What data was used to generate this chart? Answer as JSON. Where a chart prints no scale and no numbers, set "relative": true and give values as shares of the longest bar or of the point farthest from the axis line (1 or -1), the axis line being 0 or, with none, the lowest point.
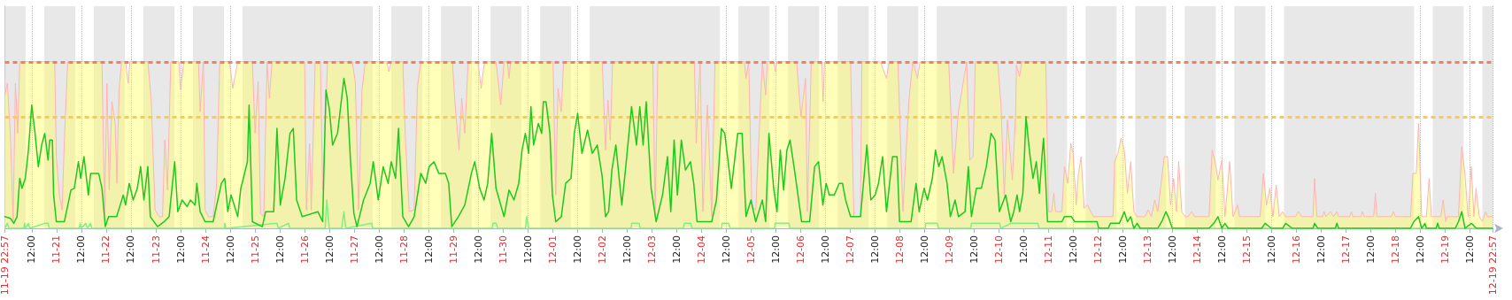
{
  "chart_data": {
    "type": "line",
    "relative": true,
    "grid": "x",
    "line_style": "solid",
    "marker": "none",
    "xlim": [
      "--11-19T22:57",
      "--12-19T22:57"
    ],
    "xticks": [
      {
        "value": "--11-19T22:57",
        "label": "11-19 22:57"
      },
      {
        "value": "--11-20T12:00",
        "label": "12:00"
      },
      {
        "value": "--11-21",
        "label": "11-21"
      },
      {
        "value": "--11-21T12:00",
        "label": "12:00"
      },
      {
        "value": "--11-22",
        "label": "11-22"
      },
      {
        "value": "--11-22T12:00",
        "label": "12:00"
      },
      {
        "value": "--11-23",
        "label": "11-23"
      },
      {
        "value": "--11-23T12:00",
        "label": "12:00"
      },
      {
        "value": "--11-24",
        "label": "11-24"
      },
      {
        "value": "--11-24T12:00",
        "label": "12:00"
      },
      {
        "value": "--11-25",
        "label": "11-25"
      },
      {
        "value": "--11-25T12:00",
        "label": "12:00"
      },
      {
        "value": "--11-26",
        "label": "11-26"
      },
      {
        "value": "--11-26T12:00",
        "label": "12:00"
      },
      {
        "value": "--11-27",
        "label": "11-27"
      },
      {
        "value": "--11-27T12:00",
        "label": "12:00"
      },
      {
        "value": "--11-28",
        "label": "11-28"
      },
      {
        "value": "--11-28T12:00",
        "label": "12:00"
      },
      {
        "value": "--11-29",
        "label": "11-29"
      },
      {
        "value": "--11-29T12:00",
        "label": "12:00"
      },
      {
        "value": "--11-30",
        "label": "11-30"
      },
      {
        "value": "--11-30T12:00",
        "label": "12:00"
      },
      {
        "value": "--12-01",
        "label": "12-01"
      },
      {
        "value": "--12-01T12:00",
        "label": "12:00"
      },
      {
        "value": "--12-02",
        "label": "12-02"
      },
      {
        "value": "--12-02T12:00",
        "label": "12:00"
      },
      {
        "value": "--12-03",
        "label": "12-03"
      },
      {
        "value": "--12-03T12:00",
        "label": "12:00"
      },
      {
        "value": "--12-04",
        "label": "12-04"
      },
      {
        "value": "--12-04T12:00",
        "label": "12:00"
      },
      {
        "value": "--12-05",
        "label": "12-05"
      },
      {
        "value": "--12-05T12:00",
        "label": "12:00"
      },
      {
        "value": "--12-06",
        "label": "12-06"
      },
      {
        "value": "--12-06T12:00",
        "label": "12:00"
      },
      {
        "value": "--12-07",
        "label": "12-07"
      },
      {
        "value": "--12-07T12:00",
        "label": "12:00"
      },
      {
        "value": "--12-08",
        "label": "12-08"
      },
      {
        "value": "--12-08T12:00",
        "label": "12:00"
      },
      {
        "value": "--12-09",
        "label": "12-09"
      },
      {
        "value": "--12-09T12:00",
        "label": "12:00"
      },
      {
        "value": "--12-10",
        "label": "12-10"
      },
      {
        "value": "--12-10T12:00",
        "label": "12:00"
      },
      {
        "value": "--12-11",
        "label": "12-11"
      },
      {
        "value": "--12-11T12:00",
        "label": "12:00"
      },
      {
        "value": "--12-12",
        "label": "12-12"
      },
      {
        "value": "--12-12T12:00",
        "label": "12:00"
      },
      {
        "value": "--12-13",
        "label": "12-13"
      },
      {
        "value": "--12-13T12:00",
        "label": "12:00"
      },
      {
        "value": "--12-14",
        "label": "12-14"
      },
      {
        "value": "--12-14T12:00",
        "label": "12:00"
      },
      {
        "value": "--12-15",
        "label": "12-15"
      },
      {
        "value": "--12-15T12:00",
        "label": "12:00"
      },
      {
        "value": "--12-16",
        "label": "12-16"
      },
      {
        "value": "--12-16T12:00",
        "label": "12:00"
      },
      {
        "value": "--12-17",
        "label": "12-17"
      },
      {
        "value": "--12-17T12:00",
        "label": "12:00"
      },
      {
        "value": "--12-18",
        "label": "12-18"
      },
      {
        "value": "--12-18T12:00",
        "label": "12:00"
      },
      {
        "value": "--12-19",
        "label": "12-19"
      },
      {
        "value": "--12-19T12:00",
        "label": "12:00"
      },
      {
        "value": "--12-19T22:57",
        "label": "12-19 22:57"
      }
    ],
    "series": [
      {
        "type": "area",
        "color": "#ffb3b3",
        "x": [
          "--11-19T22:57",
          "--11-20T00:09",
          "--11-20T01:39",
          "--11-20T02:57",
          "--11-20T04:03",
          "--11-20T05:09",
          "--11-20T06:09",
          "--11-20T23:03",
          "--11-20T23:51",
          "--11-21T01:27",
          "--11-21T02:39",
          "--11-21T03:45",
          "--11-21T05:21",
          "--11-21T21:57",
          "--11-21T23:15",
          "--11-22T00:21",
          "--11-22T01:27",
          "--11-22T02:45",
          "--11-22T04:21",
          "--11-22T05:09",
          "--11-22T06:15",
          "--11-22T07:27",
          "--11-22T09:21",
          "--11-22T10:39",
          "--11-22T11:27",
          "--11-22T20:09",
          "--11-22T21:45",
          "--11-22T23:39",
          "--11-23T01:39",
          "--11-23T03:15",
          "--11-23T04:21",
          "--11-23T05:39",
          "--11-23T07:15",
          "--11-23T11:09",
          "--11-23T11:57",
          "--11-23T13:33",
          "--11-23T20:39",
          "--11-23T21:27",
          "--11-23T23:03",
          "--11-23T23:51",
          "--11-24T01:27",
          "--11-24T03:45",
          "--11-24T05:21",
          "--11-24T06:57",
          "--11-24T11:39",
          "--11-24T13:15",
          "--11-24T15:39",
          "--11-24T22:45",
          "--11-25T00:03",
          "--11-25T01:33",
          "--11-25T02:39",
          "--11-25T04:15",
          "--11-25T05:51",
          "--11-25T06:57",
          "--11-25T08:15",
          "--11-26T00:03",
          "--11-26T00:51",
          "--11-26T02:27",
          "--11-26T03:15",
          "--11-26T05:09",
          "--11-26T07:39",
          "--11-26T08:45",
          "--11-26T11:09",
          "--11-26T23:03",
          "--11-27T00:33",
          "--11-27T02:09",
          "--11-27T03:45",
          "--11-27T05:21",
          "--11-27T15:39",
          "--11-27T16:51",
          "--11-27T17:57",
          "--11-27T23:33",
          "--11-28T00:45",
          "--11-28T02:39",
          "--11-28T05:03",
          "--11-28T06:39",
          "--11-28T08:15",
          "--11-28T23:33",
          "--11-29T00:51",
          "--11-29T02:45",
          "--11-29T04:03",
          "--11-29T05:33",
          "--11-29T07:09",
          "--11-29T11:57",
          "--11-29T13:27",
          "--11-29T15:03",
          "--11-29T20:39",
          "--11-29T22:57",
          "--11-30T00:33",
          "--11-30T02:09",
          "--11-30T02:57",
          "--11-30T03:45",
          "--12-01T00:15",
          "--12-01T01:33",
          "--12-01T02:39",
          "--12-01T04:15",
          "--12-01T05:21",
          "--12-02T00:03",
          "--12-02T01:39",
          "--12-02T02:51",
          "--12-02T03:57",
          "--12-02T05:03",
          "--12-03T00:33",
          "--12-03T01:39",
          "--12-03T02:57",
          "--12-03T20:39",
          "--12-03T21:33",
          "--12-03T23:27",
          "--12-04T00:45",
          "--12-04T02:57",
          "--12-04T05:03",
          "--12-04T06:39",
          "--12-04T20:51",
          "--12-04T21:39",
          "--12-04T22:57",
          "--12-05T00:27",
          "--12-05T02:21",
          "--12-05T05:33",
          "--12-05T07:09",
          "--12-05T07:57",
          "--12-05T11:03",
          "--12-05T11:51",
          "--12-05T12:39",
          "--12-05T22:09",
          "--12-06T00:15",
          "--12-06T02:27",
          "--12-06T03:21",
          "--12-06T05:15",
          "--12-06T10:21",
          "--12-06T10:57",
          "--12-06T11:39",
          "--12-07T00:15",
          "--12-07T01:51",
          "--12-07T05:03",
          "--12-07T05:45",
          "--12-07T14:27",
          "--12-07T15:15",
          "--12-07T17:39",
          "--12-07T18:57",
          "--12-07T23:09",
          "--12-08T01:33",
          "--12-08T03:27",
          "--12-08T04:27",
          "--12-08T06:21",
          "--12-08T08:39",
          "--12-08T09:51",
          "--12-08T23:45",
          "--12-09T02:03",
          "--12-09T04:27",
          "--12-09T06:51",
          "--12-09T08:27",
          "--12-09T09:57",
          "--12-09T11:33",
          "--12-09T12:39",
          "--12-09T23:27",
          "--12-10T01:03",
          "--12-10T02:39",
          "--12-10T04:09",
          "--12-10T06:33",
          "--12-10T08:09",
          "--12-10T08:33",
          "--12-10T10:03",
          "--12-10T11:09",
          "--12-10T22:45",
          "--12-11T00:03",
          "--12-11T01:33",
          "--12-11T02:39",
          "--12-11T03:27",
          "--12-11T06:33",
          "--12-11T07:45",
          "--12-11T09:21",
          "--12-11T10:51",
          "--12-11T11:57",
          "--12-11T13:27",
          "--12-11T14:33",
          "--12-11T15:51",
          "--12-11T17:21",
          "--12-11T18:57",
          "--12-11T20:27",
          "--12-11T21:57",
          "--12-12T07:15",
          "--12-12T08:03",
          "--12-12T09:39",
          "--12-12T11:09",
          "--12-12T12:45",
          "--12-12T14:15",
          "--12-12T15:51",
          "--12-12T17:21",
          "--12-12T18:57",
          "--12-12T22:45",
          "--12-13T00:21",
          "--12-13T01:51",
          "--12-13T03:27",
          "--12-13T04:57",
          "--12-13T06:33",
          "--12-13T08:03",
          "--12-13T09:39",
          "--12-13T11:09",
          "--12-13T12:39",
          "--12-13T13:57",
          "--12-13T15:03",
          "--12-13T16:33",
          "--12-13T18:09",
          "--12-13T19:39",
          "--12-13T21:15",
          "--12-13T22:45",
          "--12-14T05:45",
          "--12-14T07:15",
          "--12-14T08:51",
          "--12-14T10:03",
          "--12-14T11:57",
          "--12-14T13:27",
          "--12-14T15:45",
          "--12-14T17:21",
          "--12-14T19:39",
          "--12-14T20:27",
          "--12-15T06:27",
          "--12-15T08:03",
          "--12-15T09:33",
          "--12-15T11:09",
          "--12-15T12:39",
          "--12-15T14:15",
          "--12-15T15:45",
          "--12-15T17:21",
          "--12-15T18:51",
          "--12-15T23:33",
          "--12-16T01:03",
          "--12-16T02:39",
          "--12-16T08:03",
          "--12-16T08:51",
          "--12-16T09:57",
          "--12-16T12:39",
          "--12-16T13:27",
          "--12-16T14:15",
          "--12-16T16:33",
          "--12-16T18:03",
          "--12-16T19:39",
          "--12-16T20:27",
          "--12-17T01:51",
          "--12-17T02:39",
          "--12-17T03:21",
          "--12-17T07:15",
          "--12-17T08:03",
          "--12-17T08:51",
          "--12-17T13:27",
          "--12-17T14:15",
          "--12-17T14:57",
          "--12-17T21:57",
          "--12-17T23:03",
          "--12-17T23:57",
          "--12-18T07:15",
          "--12-18T08:27",
          "--12-18T10:03",
          "--12-18T11:09",
          "--12-18T12:39",
          "--12-18T14:57",
          "--12-18T16:15",
          "--12-18T17:21",
          "--12-18T21:57",
          "--12-18T23:03",
          "--12-19T00:15",
          "--12-19T01:03",
          "--12-19T06:27",
          "--12-19T08:03",
          "--12-19T09:33",
          "--12-19T11:09",
          "--12-19T12:39",
          "--12-19T13:57",
          "--12-19T14:57",
          "--12-19T16:33",
          "--12-19T18:03",
          "--12-19T19:39",
          "--12-19T20:27",
          "--12-19T22:57"
        ],
        "values": [
          0.8,
          0.87,
          0.55,
          0.04,
          0.87,
          0.57,
          1,
          1,
          0.43,
          0.19,
          0.11,
          0.53,
          1,
          1,
          0.07,
          0.87,
          0.23,
          0.76,
          0.63,
          0.27,
          0.84,
          1,
          1,
          0.87,
          1,
          1,
          0.78,
          0.11,
          0.07,
          0.07,
          0.53,
          0.23,
          1,
          1,
          0.83,
          1,
          1,
          0.7,
          1,
          0.11,
          0.07,
          0.07,
          0.25,
          1,
          1,
          0.84,
          1,
          1,
          0.57,
          0.88,
          0.09,
          0.07,
          1,
          0.78,
          1,
          1,
          0.11,
          0.51,
          0.11,
          1,
          1,
          0.23,
          1,
          1,
          0.88,
          0.11,
          0.82,
          1,
          1,
          0.94,
          1,
          1,
          0.55,
          0.1,
          0.11,
          0.85,
          1,
          1,
          0.74,
          0.47,
          0.78,
          0.57,
          1,
          1,
          0.84,
          1,
          1,
          0.74,
          1,
          1,
          0.9,
          1,
          1,
          0.2,
          0.84,
          0.7,
          1,
          1,
          0.47,
          0.77,
          0.53,
          1,
          1,
          0.07,
          1,
          1,
          0.51,
          1,
          0.1,
          0.74,
          0.07,
          1,
          1,
          0.9,
          1,
          0.13,
          0.11,
          1,
          0.8,
          1,
          1,
          0.94,
          1,
          1,
          0.67,
          0.9,
          0.1,
          1,
          1,
          0.76,
          1,
          1,
          0.07,
          0.07,
          1,
          1,
          0.98,
          0.9,
          1,
          1,
          0.1,
          0.53,
          0.76,
          1,
          0.9,
          1,
          1,
          0.33,
          0.7,
          0.88,
          1,
          0.41,
          0.43,
          1,
          1,
          0.74,
          0.19,
          0.65,
          0.29,
          0.69,
          0.98,
          0.91,
          1,
          1,
          0.1,
          0.1,
          0.21,
          0.1,
          0.1,
          0.37,
          0.27,
          0.51,
          0.45,
          0.14,
          0.33,
          0.43,
          0.12,
          0.14,
          0.1,
          0.07,
          0.07,
          0.4,
          0.45,
          0.54,
          0.47,
          0.21,
          0.4,
          0.1,
          0.07,
          0.07,
          0.11,
          0.07,
          0.17,
          0.1,
          0.27,
          0.43,
          0.43,
          0.14,
          0.3,
          0.1,
          0.4,
          0.1,
          0.07,
          0.07,
          0.1,
          0.07,
          0.07,
          0.47,
          0.39,
          0.29,
          0.41,
          0.07,
          0.4,
          0.07,
          0.14,
          0.07,
          0.07,
          0.33,
          0.14,
          0.24,
          0.07,
          0.26,
          0.07,
          0.1,
          0.07,
          0.07,
          0.1,
          0.07,
          0.07,
          0.3,
          0.07,
          0.07,
          0.1,
          0.07,
          0.1,
          0.07,
          0.1,
          0.07,
          0.07,
          0.1,
          0.07,
          0.07,
          0.1,
          0.07,
          0.07,
          0.21,
          0.07,
          0.07,
          0.1,
          0.07,
          0.07,
          0.33,
          0.33,
          0.63,
          0.07,
          0.07,
          0.3,
          0.07,
          0.07,
          0.17,
          0.04,
          0.07,
          0.07,
          0.49,
          0.33,
          0.07,
          0.37,
          0.07,
          0.24,
          0.07,
          0.04,
          0.1,
          0.07,
          0.07
        ]
      },
      {
        "type": "line",
        "color": "#80f080",
        "x": [
          "--11-19T22:57",
          "--11-20T00:09",
          "--11-20T00:57",
          "--11-20T08:03",
          "--11-20T08:27",
          "--11-20T08:57",
          "--11-20T10:21",
          "--11-20T10:57",
          "--11-20T18:15",
          "--11-20T19:51",
          "--11-20T20:27",
          "--11-21T10:57",
          "--11-21T11:21",
          "--11-21T11:57",
          "--11-21T14:03",
          "--11-21T14:57",
          "--11-21T16:27",
          "--11-21T16:57",
          "--11-24T09:15",
          "--11-24T09:21",
          "--11-24T09:57",
          "--11-25T10:39",
          "--11-25T11:15",
          "--11-25T16:09",
          "--11-25T16:57",
          "--11-26T09:57",
          "--11-26T10:45",
          "--11-26T11:57",
          "--11-26T17:57",
          "--11-26T19:03",
          "--11-26T19:57",
          "--11-27T08:27",
          "--11-27T08:57",
          "--11-29T18:57",
          "--11-29T19:09",
          "--11-29T20:45",
          "--11-29T21:27",
          "--11-30T10:57",
          "--11-30T11:27",
          "--11-30T12:27",
          "--12-02T14:09",
          "--12-02T14:15",
          "--12-02T17:57",
          "--12-02T18:27",
          "--12-03T15:27",
          "--12-03T15:45",
          "--12-03T18:57",
          "--12-03T19:27",
          "--12-04T09:51",
          "--12-04T10:03",
          "--12-04T13:15",
          "--12-04T13:57",
          "--12-05T11:27",
          "--12-05T11:39",
          "--12-05T18:27",
          "--12-05T18:57",
          "--12-08T12:27",
          "--12-08T12:39",
          "--12-08T18:09",
          "--12-08T18:57",
          "--12-09T10:27",
          "--12-09T10:45",
          "--12-10T00:27",
          "--12-10T00:57",
          "--12-10T05:57",
          "--12-10T18:57",
          "--12-10T19:27",
          "--12-19T22:57"
        ],
        "values": [
          0,
          0.03,
          0,
          0,
          0.03,
          0,
          0.03,
          0,
          0.03,
          0.03,
          0,
          0,
          0.03,
          0,
          0.03,
          0,
          0.03,
          0,
          0,
          0.03,
          0,
          0.03,
          0,
          0.03,
          0,
          0,
          0.17,
          0,
          0,
          0.1,
          0,
          0.03,
          0,
          0,
          0.03,
          0.03,
          0,
          0,
          0.07,
          0,
          0,
          0.03,
          0.03,
          0,
          0,
          0.03,
          0.03,
          0,
          0,
          0.03,
          0.03,
          0,
          0,
          0.03,
          0.03,
          0,
          0,
          0.03,
          0.03,
          0,
          0,
          0.03,
          0.03,
          0,
          0.03,
          0.03,
          0,
          0
        ]
      },
      {
        "type": "line",
        "color": "#1ec81e",
        "x": [
          "--11-19T22:57",
          "--11-20T01:39",
          "--11-20T03:15",
          "--11-20T04:51",
          "--11-20T06:09",
          "--11-20T07:15",
          "--11-20T08:51",
          "--11-20T10:21",
          "--11-20T11:57",
          "--11-20T13:33",
          "--11-20T15:09",
          "--11-20T16:45",
          "--11-20T18:15",
          "--11-20T19:51",
          "--11-20T20:39",
          "--11-20T21:57",
          "--11-20T22:33",
          "--11-20T23:51",
          "--11-21T03:45",
          "--11-21T06:57",
          "--11-21T08:33",
          "--11-21T10:33",
          "--11-21T11:39",
          "--11-21T13:15",
          "--11-21T15:21",
          "--11-21T16:27",
          "--11-21T20:21",
          "--11-21T21:57",
          "--11-21T23:33",
          "--11-22T01:09",
          "--11-22T05:03",
          "--11-22T08:15",
          "--11-22T09:21",
          "--11-22T11:09",
          "--11-22T13:03",
          "--11-22T15:03",
          "--11-22T16:39",
          "--11-22T18:15",
          "--11-22T20:09",
          "--11-22T21:21",
          "--11-23T00:51",
          "--11-23T04:03",
          "--11-23T06:27",
          "--11-23T09:09",
          "--11-23T10:39",
          "--11-23T12:45",
          "--11-23T15:09",
          "--11-23T16:45",
          "--11-23T19:03",
          "--11-23T19:51",
          "--11-23T21:27",
          "--11-23T23:51",
          "--11-24T03:45",
          "--11-24T07:45",
          "--11-24T09:21",
          "--11-24T10:51",
          "--11-24T12:27",
          "--11-24T15:39",
          "--11-24T17:09",
          "--11-24T20:21",
          "--11-24T21:09",
          "--11-24T22:45",
          "--11-25T03:33",
          "--11-25T05:09",
          "--11-25T09:03",
          "--11-25T10:39",
          "--11-25T12:15",
          "--11-25T14:33",
          "--11-25T16:57",
          "--11-25T18:33",
          "--11-25T20:09",
          "--11-25T22:51",
          "--11-26T06:27",
          "--11-26T08:45",
          "--11-26T10:21",
          "--11-26T11:57",
          "--11-26T13:33",
          "--11-26T15:57",
          "--11-26T19:03",
          "--11-26T20:39",
          "--11-26T22:15",
          "--11-26T23:51",
          "--11-27T01:21",
          "--11-27T04:33",
          "--11-27T07:45",
          "--11-27T09:15",
          "--11-27T11:39",
          "--11-27T14:03",
          "--11-27T16:27",
          "--11-27T17:57",
          "--11-27T20:03",
          "--11-27T21:27",
          "--11-27T23:33",
          "--11-28T02:21",
          "--11-28T05:03",
          "--11-28T08:15",
          "--11-28T10:39",
          "--11-28T12:15",
          "--11-28T14:39",
          "--11-28T16:57",
          "--11-28T20:09",
          "--11-28T21:45",
          "--11-28T23:15",
          "--11-29T02:27",
          "--11-29T05:33",
          "--11-29T08:45",
          "--11-29T10:21",
          "--11-29T12:45",
          "--11-29T14:51",
          "--11-29T16:39",
          "--11-29T18:33",
          "--11-29T20:39",
          "--11-30T00:33",
          "--11-30T02:57",
          "--11-30T05:21",
          "--11-30T07:39",
          "--11-30T09:15",
          "--11-30T10:51",
          "--11-30T12:27",
          "--11-30T13:33",
          "--11-30T14:51",
          "--11-30T17:09",
          "--11-30T18:45",
          "--11-30T19:33",
          "--11-30T20:51",
          "--11-30T22:45",
          "--11-30T23:57",
          "--12-01T01:33",
          "--12-01T04:15",
          "--12-01T06:21",
          "--12-01T08:57",
          "--12-01T10:33",
          "--12-01T12:09",
          "--12-01T14:15",
          "--12-01T16:57",
          "--12-01T19:15",
          "--12-01T21:39",
          "--12-02T00:03",
          "--12-02T01:39",
          "--12-02T03:09",
          "--12-02T04:45",
          "--12-02T06:39",
          "--12-02T09:33",
          "--12-02T11:27",
          "--12-02T14:15",
          "--12-02T16:39",
          "--12-02T18:15",
          "--12-02T19:51",
          "--12-02T21:21",
          "--12-02T23:45",
          "--12-03T02:09",
          "--12-03T05:15",
          "--12-03T07:39",
          "--12-03T09:15",
          "--12-03T10:51",
          "--12-03T12:27",
          "--12-03T14:21",
          "--12-03T16:21",
          "--12-03T18:45",
          "--12-03T20:21",
          "--12-03T21:57",
          "--12-04T05:03",
          "--12-04T07:21",
          "--12-04T09:45",
          "--12-04T11:21",
          "--12-04T14:33",
          "--12-04T17:39",
          "--12-04T19:45",
          "--12-04T21:39",
          "--12-05T00:03",
          "--12-05T02:21",
          "--12-05T05:33",
          "--12-05T07:09",
          "--12-05T08:45",
          "--12-05T11:03",
          "--12-05T12:39",
          "--12-05T14:15",
          "--12-05T15:51",
          "--12-05T17:27",
          "--12-05T18:57",
          "--12-05T21:21",
          "--12-06T00:33",
          "--12-06T04:27",
          "--12-06T06:51",
          "--12-06T08:45",
          "--12-06T10:51",
          "--12-06T12:27",
          "--12-06T13:57",
          "--12-06T16:21",
          "--12-06T18:45",
          "--12-06T20:21",
          "--12-06T21:51",
          "--12-07T00:15",
          "--12-07T05:03",
          "--12-07T08:09",
          "--12-07T10:03",
          "--12-07T12:09",
          "--12-07T13:45",
          "--12-07T15:45",
          "--12-07T17:39",
          "--12-07T20:33",
          "--12-07T22:45",
          "--12-07T23:57",
          "--12-08T05:33",
          "--12-08T07:57",
          "--12-08T09:27",
          "--12-08T11:51",
          "--12-08T13:27",
          "--12-08T15:51",
          "--12-08T17:21",
          "--12-08T18:57",
          "--12-08T20:33",
          "--12-08T22:57",
          "--12-09T00:33",
          "--12-09T02:51",
          "--12-09T04:27",
          "--12-09T07:39",
          "--12-09T09:15",
          "--12-09T10:45",
          "--12-09T13:09",
          "--12-09T15:33",
          "--12-09T17:57",
          "--12-09T20:15",
          "--12-09T22:09",
          "--12-10T00:15",
          "--12-10T03:21",
          "--12-10T05:45",
          "--12-10T07:15",
          "--12-10T08:51",
          "--12-10T10:03",
          "--12-10T11:39",
          "--12-10T13:09",
          "--12-10T15:03",
          "--12-10T16:33",
          "--12-10T18:09",
          "--12-10T19:39",
          "--12-10T20:57",
          "--12-10T21:39",
          "--12-10T22:45",
          "--12-10T23:33",
          "--12-11T06:33",
          "--12-11T07:45",
          "--12-11T11:09",
          "--12-11T12:45",
          "--12-11T23:33",
          "--12-12T00:21",
          "--12-12T04:57",
          "--12-12T06:03",
          "--12-12T10:21",
          "--12-12T12:45",
          "--12-12T14:15",
          "--12-12T15:51",
          "--12-12T17:21",
          "--12-12T18:57",
          "--12-12T20:27",
          "--12-13T04:57",
          "--12-13T07:15",
          "--12-13T08:51",
          "--12-13T10:21",
          "--12-13T11:57",
          "--12-14T05:45",
          "--12-14T08:03",
          "--12-14T10:03",
          "--12-14T11:57",
          "--12-14T13:27",
          "--12-14T15:03",
          "--12-15T07:15",
          "--12-15T08:51",
          "--12-15T11:57",
          "--12-15T17:21",
          "--12-15T18:51",
          "--12-15T21:57",
          "--12-16T08:03",
          "--12-16T08:51",
          "--12-16T10:21",
          "--12-16T18:51",
          "--12-16T19:39",
          "--12-16T20:27",
          "--12-18T07:15",
          "--12-18T08:51",
          "--12-18T11:09",
          "--12-18T12:39",
          "--12-18T14:15",
          "--12-18T14:57",
          "--12-18T19:39",
          "--12-18T20:27",
          "--12-18T21:09",
          "--12-19T04:57",
          "--12-19T06:27",
          "--12-19T08:03",
          "--12-19T09:39",
          "--12-19T12:45",
          "--12-19T15:03",
          "--12-19T22:57"
        ],
        "values": [
          0.07,
          0.06,
          0.03,
          0.07,
          0.3,
          0.24,
          0.3,
          0.47,
          0.74,
          0.57,
          0.37,
          0.5,
          0.57,
          0.41,
          0.53,
          0.53,
          0.2,
          0.04,
          0.04,
          0.23,
          0.24,
          0.4,
          0.3,
          0.43,
          0.2,
          0.33,
          0.33,
          0.24,
          0.01,
          0.07,
          0.07,
          0.2,
          0.14,
          0.27,
          0.17,
          0.24,
          0.37,
          0.17,
          0.37,
          0.07,
          0.01,
          0.04,
          0.07,
          0.4,
          0.1,
          0.17,
          0.13,
          0.17,
          0.14,
          0.27,
          0.1,
          0.04,
          0.04,
          0.27,
          0.3,
          0.1,
          0.2,
          0.07,
          0.24,
          0.4,
          0.74,
          0.04,
          0.01,
          0.1,
          0.1,
          0.6,
          0.14,
          0.3,
          0.57,
          0.6,
          0.17,
          0.07,
          0.1,
          0.04,
          0.83,
          0.72,
          0.5,
          0.57,
          0.9,
          0.78,
          0.4,
          0.09,
          0.01,
          0.17,
          0.27,
          0.4,
          0.17,
          0.37,
          0.27,
          0.4,
          0.3,
          0.6,
          0.07,
          0.01,
          0.07,
          0.33,
          0.27,
          0.37,
          0.4,
          0.33,
          0.33,
          0.27,
          0.01,
          0.07,
          0.14,
          0.33,
          0.4,
          0.24,
          0.17,
          0.27,
          0.57,
          0.24,
          0.07,
          0.23,
          0.17,
          0.27,
          0.47,
          0.57,
          0.45,
          0.73,
          0.5,
          0.63,
          0.57,
          0.76,
          0.76,
          0.57,
          0.2,
          0.04,
          0.07,
          0.27,
          0.3,
          0.57,
          0.69,
          0.45,
          0.59,
          0.45,
          0.5,
          0.31,
          0.07,
          0.1,
          0.35,
          0.5,
          0.14,
          0.37,
          0.73,
          0.5,
          0.73,
          0.5,
          0.76,
          0.24,
          0.04,
          0.2,
          0.43,
          0.1,
          0.53,
          0.2,
          0.53,
          0.35,
          0.4,
          0.27,
          0.04,
          0.04,
          0.17,
          0.6,
          0.57,
          0.24,
          0.57,
          0.57,
          0.07,
          0.17,
          0.04,
          0.17,
          0.04,
          0.57,
          0.24,
          0.1,
          0.47,
          0.23,
          0.47,
          0.53,
          0.33,
          0.04,
          0.04,
          0.37,
          0.4,
          0.14,
          0.27,
          0.2,
          0.2,
          0.27,
          0.27,
          0.17,
          0.07,
          0.07,
          0.5,
          0.17,
          0.2,
          0.27,
          0.43,
          0.1,
          0.43,
          0.43,
          0.04,
          0.04,
          0.27,
          0.1,
          0.24,
          0.17,
          0.3,
          0.47,
          0.37,
          0.43,
          0.27,
          0.07,
          0.17,
          0.07,
          0.1,
          0.37,
          0.07,
          0.24,
          0.24,
          0.37,
          0.57,
          0.53,
          0.1,
          0.2,
          0.04,
          0.1,
          0.2,
          0.1,
          0.21,
          0.67,
          0.44,
          0.3,
          0.4,
          0.21,
          0.44,
          0.54,
          0.27,
          0.04,
          0.04,
          0.07,
          0.07,
          0.04,
          0.04,
          0,
          0,
          0.03,
          0.03,
          0.1,
          0.04,
          0.07,
          0,
          0.03,
          0,
          0,
          0.05,
          0.1,
          0.06,
          0,
          0,
          0.03,
          0.07,
          0,
          0.03,
          0,
          0,
          0.03,
          0,
          0,
          0.03,
          0,
          0,
          0.03,
          0,
          0,
          0.03,
          0,
          0,
          0.04,
          0.07,
          0,
          0.03,
          0,
          0,
          0.03,
          0,
          0,
          0.04,
          0.1,
          0,
          0.03,
          0,
          0
        ]
      }
    ],
    "ref_lines": [
      {
        "axis": "y",
        "value": 1,
        "color": "#f08060",
        "line_style": "dashed"
      },
      {
        "axis": "y",
        "value": 0.67,
        "color": "#ffc850",
        "line_style": "dashed"
      }
    ],
    "bands": [
      {
        "axis": "x",
        "from": "--11-19T22:57",
        "to": "--11-20T09:00",
        "color": "#e8e8e8"
      },
      {
        "axis": "x",
        "from": "--11-20T18:00",
        "to": "--11-21T09:00",
        "color": "#e8e8e8"
      },
      {
        "axis": "x",
        "from": "--11-21T18:00",
        "to": "--11-22T09:00",
        "color": "#e8e8e8"
      },
      {
        "axis": "x",
        "from": "--11-22T18:00",
        "to": "--11-23T09:00",
        "color": "#e8e8e8"
      },
      {
        "axis": "x",
        "from": "--11-23T18:00",
        "to": "--11-24T09:00",
        "color": "#e8e8e8"
      },
      {
        "axis": "x",
        "from": "--11-24T18:00",
        "to": "--11-27T09:00",
        "color": "#e8e8e8"
      },
      {
        "axis": "x",
        "from": "--11-27T18:00",
        "to": "--11-28T09:00",
        "color": "#e8e8e8"
      },
      {
        "axis": "x",
        "from": "--11-28T18:00",
        "to": "--11-29T09:00",
        "color": "#e8e8e8"
      },
      {
        "axis": "x",
        "from": "--11-29T18:00",
        "to": "--11-30T09:00",
        "color": "#e8e8e8"
      },
      {
        "axis": "x",
        "from": "--11-30T18:00",
        "to": "--12-01T09:00",
        "color": "#e8e8e8"
      },
      {
        "axis": "x",
        "from": "--12-01T18:00",
        "to": "--12-04T09:00",
        "color": "#e8e8e8"
      },
      {
        "axis": "x",
        "from": "--12-04T18:00",
        "to": "--12-05T09:00",
        "color": "#e8e8e8"
      },
      {
        "axis": "x",
        "from": "--12-05T18:00",
        "to": "--12-06T09:00",
        "color": "#e8e8e8"
      },
      {
        "axis": "x",
        "from": "--12-06T18:00",
        "to": "--12-07T09:00",
        "color": "#e8e8e8"
      },
      {
        "axis": "x",
        "from": "--12-07T18:00",
        "to": "--12-08T09:00",
        "color": "#e8e8e8"
      },
      {
        "axis": "x",
        "from": "--12-08T18:00",
        "to": "--12-11T09:00",
        "color": "#e8e8e8"
      },
      {
        "axis": "x",
        "from": "--12-11T18:00",
        "to": "--12-12T09:00",
        "color": "#e8e8e8"
      },
      {
        "axis": "x",
        "from": "--12-12T18:00",
        "to": "--12-13T09:00",
        "color": "#e8e8e8"
      },
      {
        "axis": "x",
        "from": "--12-13T18:00",
        "to": "--12-14T09:00",
        "color": "#e8e8e8"
      },
      {
        "axis": "x",
        "from": "--12-14T18:00",
        "to": "--12-15T09:00",
        "color": "#e8e8e8"
      },
      {
        "axis": "x",
        "from": "--12-15T18:00",
        "to": "--12-18T09:00",
        "color": "#e8e8e8"
      },
      {
        "axis": "x",
        "from": "--12-18T18:00",
        "to": "--12-19T09:00",
        "color": "#e8e8e8"
      },
      {
        "axis": "x",
        "from": "--12-19T18:00",
        "to": "--12-19T22:57",
        "color": "#e8e8e8"
      }
    ]
  }
}
